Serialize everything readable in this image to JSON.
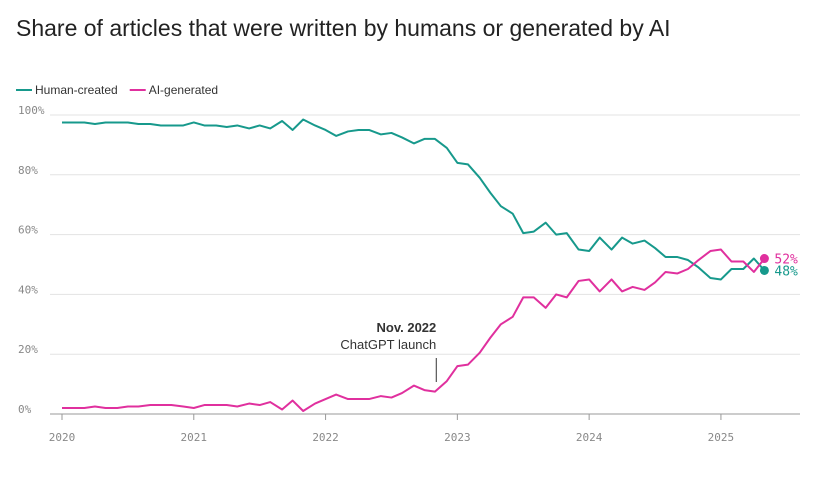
{
  "chart_data": {
    "type": "line",
    "title": "Share of articles that were written by humans or generated by AI",
    "x": [
      2020,
      2020.08,
      2020.17,
      2020.25,
      2020.33,
      2020.42,
      2020.5,
      2020.58,
      2020.67,
      2020.75,
      2020.83,
      2020.92,
      2021,
      2021.08,
      2021.17,
      2021.25,
      2021.33,
      2021.42,
      2021.5,
      2021.58,
      2021.67,
      2021.75,
      2021.83,
      2021.92,
      2022,
      2022.08,
      2022.17,
      2022.25,
      2022.33,
      2022.42,
      2022.5,
      2022.58,
      2022.67,
      2022.75,
      2022.83,
      2022.92,
      2023,
      2023.08,
      2023.17,
      2023.25,
      2023.33,
      2023.42,
      2023.5,
      2023.58,
      2023.67,
      2023.75,
      2023.83,
      2023.92,
      2024,
      2024.08,
      2024.17,
      2024.25,
      2024.33,
      2024.42,
      2024.5,
      2024.58,
      2024.67,
      2024.75,
      2024.83,
      2024.92,
      2025,
      2025.08,
      2025.17,
      2025.25,
      2025.33
    ],
    "series": [
      {
        "name": "Human-created",
        "color": "#17998c",
        "values": [
          97.5,
          97.5,
          97.5,
          97,
          97.5,
          97.5,
          97.5,
          97,
          97,
          96.5,
          96.5,
          96.5,
          97.5,
          96.5,
          96.5,
          96,
          96.5,
          95.5,
          96.5,
          95.5,
          98,
          95,
          98.5,
          96.5,
          95,
          93,
          94.5,
          95,
          95,
          93.5,
          94,
          92.5,
          90.5,
          92,
          92,
          89,
          84,
          83.5,
          79,
          74,
          69.5,
          67,
          60.5,
          61,
          64,
          60,
          60.5,
          55,
          54.5,
          59,
          55,
          59,
          57,
          58,
          55.5,
          52.5,
          52.5,
          51.5,
          49,
          45.5,
          45,
          48.5,
          48.5,
          52,
          48
        ],
        "value_labels": [
          null,
          null,
          null,
          null,
          null,
          null,
          null,
          null,
          null,
          null,
          null,
          null,
          null,
          null,
          null,
          null,
          null,
          null,
          null,
          null,
          null,
          null,
          null,
          null,
          null,
          null,
          null,
          null,
          null,
          null,
          null,
          null,
          null,
          null,
          null,
          null,
          null,
          null,
          null,
          null,
          null,
          null,
          null,
          null,
          null,
          null,
          null,
          null,
          null,
          null,
          null,
          null,
          null,
          null,
          null,
          null,
          null,
          null,
          null,
          null,
          null,
          null,
          null,
          null,
          "48%"
        ]
      },
      {
        "name": "AI-generated",
        "color": "#e0309e",
        "values": [
          2,
          2,
          2,
          2.5,
          2,
          2,
          2.5,
          2.5,
          3,
          3,
          3,
          2.5,
          2,
          3,
          3,
          3,
          2.5,
          3.5,
          3,
          4,
          1.5,
          4.5,
          1,
          3.5,
          5,
          6.5,
          5,
          5,
          5,
          6,
          5.5,
          7,
          9.5,
          8,
          7.5,
          11,
          16,
          16.5,
          20.5,
          25.5,
          30,
          32.5,
          39,
          39,
          35.5,
          40,
          39,
          44.5,
          45,
          41,
          45,
          41,
          42.5,
          41.5,
          44,
          47.5,
          47,
          48.5,
          51.5,
          54.5,
          55,
          51,
          51,
          47.5,
          52
        ],
        "value_labels": [
          null,
          null,
          null,
          null,
          null,
          null,
          null,
          null,
          null,
          null,
          null,
          null,
          null,
          null,
          null,
          null,
          null,
          null,
          null,
          null,
          null,
          null,
          null,
          null,
          null,
          null,
          null,
          null,
          null,
          null,
          null,
          null,
          null,
          null,
          null,
          null,
          null,
          null,
          null,
          null,
          null,
          null,
          null,
          null,
          null,
          null,
          null,
          null,
          null,
          null,
          null,
          null,
          null,
          null,
          null,
          null,
          null,
          null,
          null,
          null,
          null,
          null,
          null,
          null,
          "52%"
        ]
      }
    ],
    "annotation": {
      "x": 2022.84,
      "lines": [
        "Nov. 2022",
        "ChatGPT launch"
      ]
    },
    "xlim": [
      2020,
      2025.6
    ],
    "xticks": [
      2020,
      2021,
      2022,
      2023,
      2024,
      2025
    ],
    "ylim": [
      0,
      100
    ],
    "yticks": [
      {
        "value": 0,
        "label": "0%"
      },
      {
        "value": 20,
        "label": "20%"
      },
      {
        "value": 40,
        "label": "40%"
      },
      {
        "value": 60,
        "label": "60%"
      },
      {
        "value": 80,
        "label": "80%"
      },
      {
        "value": 100,
        "label": "100%"
      }
    ],
    "grid": true,
    "legend": "top-left"
  }
}
